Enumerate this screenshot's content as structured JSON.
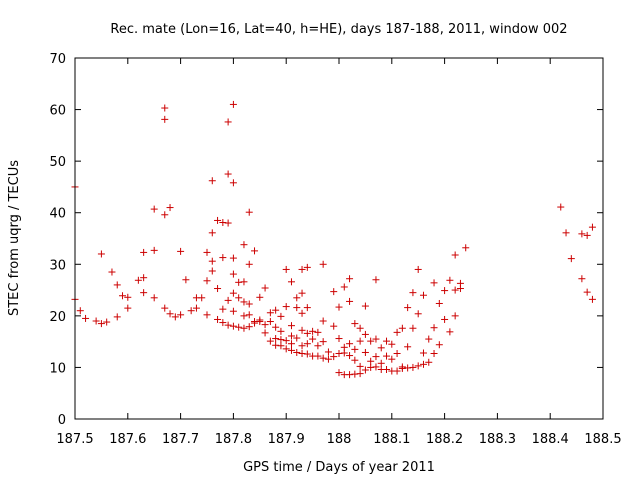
{
  "chart_data": {
    "type": "scatter",
    "title": "Rec. mate (Lon=16, Lat=40, h=HE), days 187-188, 2011, window 002",
    "xlabel": "GPS time / Days of year 2011",
    "ylabel": "STEC from uqrg / TECUs",
    "xlim": [
      187.5,
      188.5
    ],
    "ylim": [
      0,
      70
    ],
    "x_ticks": [
      187.5,
      187.6,
      187.7,
      187.8,
      187.9,
      188.0,
      188.1,
      188.2,
      188.3,
      188.4,
      188.5
    ],
    "x_tick_labels": [
      "187.5",
      "187.6",
      "187.7",
      "187.8",
      "187.9",
      "188",
      "188.1",
      "188.2",
      "188.3",
      "188.4",
      "188.5"
    ],
    "y_ticks": [
      0,
      10,
      20,
      30,
      40,
      50,
      60,
      70
    ],
    "y_tick_labels": [
      "0",
      "10",
      "20",
      "30",
      "40",
      "50",
      "60",
      "70"
    ],
    "grid": false,
    "marker": "+",
    "color": "#cc0000",
    "series": [
      {
        "name": "STEC",
        "points": [
          [
            187.5,
            45.0
          ],
          [
            187.5,
            23.2
          ],
          [
            187.51,
            21.0
          ],
          [
            187.52,
            19.5
          ],
          [
            187.54,
            19.0
          ],
          [
            187.55,
            32.0
          ],
          [
            187.55,
            18.5
          ],
          [
            187.56,
            18.8
          ],
          [
            187.57,
            28.5
          ],
          [
            187.58,
            26.0
          ],
          [
            187.58,
            19.8
          ],
          [
            187.59,
            23.9
          ],
          [
            187.6,
            23.6
          ],
          [
            187.6,
            21.5
          ],
          [
            187.62,
            26.9
          ],
          [
            187.63,
            27.4
          ],
          [
            187.63,
            24.5
          ],
          [
            187.63,
            32.3
          ],
          [
            187.65,
            32.7
          ],
          [
            187.65,
            40.7
          ],
          [
            187.65,
            23.5
          ],
          [
            187.67,
            39.6
          ],
          [
            187.67,
            60.3
          ],
          [
            187.67,
            58.1
          ],
          [
            187.67,
            21.5
          ],
          [
            187.68,
            41.0
          ],
          [
            187.68,
            20.4
          ],
          [
            187.69,
            19.8
          ],
          [
            187.7,
            32.5
          ],
          [
            187.7,
            20.2
          ],
          [
            187.71,
            27.0
          ],
          [
            187.72,
            21.0
          ],
          [
            187.73,
            23.5
          ],
          [
            187.73,
            21.5
          ],
          [
            187.74,
            23.5
          ],
          [
            187.75,
            20.2
          ],
          [
            187.75,
            26.8
          ],
          [
            187.75,
            32.3
          ],
          [
            187.76,
            28.7
          ],
          [
            187.76,
            30.6
          ],
          [
            187.76,
            36.1
          ],
          [
            187.76,
            46.2
          ],
          [
            187.77,
            38.5
          ],
          [
            187.77,
            19.3
          ],
          [
            187.77,
            25.3
          ],
          [
            187.78,
            38.1
          ],
          [
            187.78,
            31.3
          ],
          [
            187.78,
            21.3
          ],
          [
            187.78,
            18.7
          ],
          [
            187.79,
            57.6
          ],
          [
            187.79,
            47.5
          ],
          [
            187.79,
            38.0
          ],
          [
            187.79,
            23.0
          ],
          [
            187.79,
            18.2
          ],
          [
            187.8,
            61.0
          ],
          [
            187.8,
            45.8
          ],
          [
            187.8,
            31.2
          ],
          [
            187.8,
            28.1
          ],
          [
            187.8,
            24.4
          ],
          [
            187.8,
            18.0
          ],
          [
            187.8,
            20.9
          ],
          [
            187.81,
            26.5
          ],
          [
            187.81,
            17.8
          ],
          [
            187.81,
            23.5
          ],
          [
            187.82,
            33.8
          ],
          [
            187.82,
            26.6
          ],
          [
            187.82,
            22.7
          ],
          [
            187.82,
            20.0
          ],
          [
            187.82,
            17.6
          ],
          [
            187.83,
            40.1
          ],
          [
            187.83,
            30.0
          ],
          [
            187.83,
            22.3
          ],
          [
            187.83,
            20.2
          ],
          [
            187.83,
            17.9
          ],
          [
            187.84,
            18.6
          ],
          [
            187.84,
            18.9
          ],
          [
            187.84,
            32.6
          ],
          [
            187.85,
            23.6
          ],
          [
            187.85,
            19.2
          ],
          [
            187.85,
            18.9
          ],
          [
            187.86,
            25.4
          ],
          [
            187.86,
            18.3
          ],
          [
            187.86,
            16.7
          ],
          [
            187.87,
            20.6
          ],
          [
            187.87,
            18.9
          ],
          [
            187.87,
            15.1
          ],
          [
            187.88,
            21.1
          ],
          [
            187.88,
            17.8
          ],
          [
            187.88,
            15.6
          ],
          [
            187.88,
            14.3
          ],
          [
            187.89,
            19.9
          ],
          [
            187.89,
            17.0
          ],
          [
            187.89,
            15.4
          ],
          [
            187.89,
            14.2
          ],
          [
            187.9,
            29.0
          ],
          [
            187.9,
            21.8
          ],
          [
            187.9,
            15.2
          ],
          [
            187.9,
            13.6
          ],
          [
            187.91,
            26.6
          ],
          [
            187.91,
            18.1
          ],
          [
            187.91,
            16.1
          ],
          [
            187.91,
            14.6
          ],
          [
            187.91,
            13.3
          ],
          [
            187.92,
            23.5
          ],
          [
            187.92,
            21.6
          ],
          [
            187.92,
            15.7
          ],
          [
            187.92,
            12.9
          ],
          [
            187.93,
            29.0
          ],
          [
            187.93,
            24.4
          ],
          [
            187.93,
            20.5
          ],
          [
            187.93,
            17.2
          ],
          [
            187.93,
            14.2
          ],
          [
            187.93,
            12.7
          ],
          [
            187.94,
            29.4
          ],
          [
            187.94,
            21.6
          ],
          [
            187.94,
            16.6
          ],
          [
            187.94,
            14.6
          ],
          [
            187.94,
            12.6
          ],
          [
            187.95,
            17.0
          ],
          [
            187.95,
            15.5
          ],
          [
            187.95,
            12.2
          ],
          [
            187.96,
            16.8
          ],
          [
            187.96,
            14.2
          ],
          [
            187.96,
            12.2
          ],
          [
            187.97,
            30.0
          ],
          [
            187.97,
            19.0
          ],
          [
            187.97,
            15.0
          ],
          [
            187.97,
            11.8
          ],
          [
            187.98,
            11.6
          ],
          [
            187.98,
            13.0
          ],
          [
            187.99,
            24.7
          ],
          [
            187.99,
            18.0
          ],
          [
            187.99,
            12.1
          ],
          [
            188.0,
            21.7
          ],
          [
            188.0,
            15.6
          ],
          [
            188.0,
            12.7
          ],
          [
            188.0,
            9.0
          ],
          [
            188.01,
            25.6
          ],
          [
            188.01,
            13.9
          ],
          [
            188.01,
            12.8
          ],
          [
            188.01,
            8.6
          ],
          [
            188.02,
            27.2
          ],
          [
            188.02,
            22.8
          ],
          [
            188.02,
            14.6
          ],
          [
            188.02,
            12.3
          ],
          [
            188.02,
            8.6
          ],
          [
            188.03,
            18.5
          ],
          [
            188.03,
            13.5
          ],
          [
            188.03,
            11.4
          ],
          [
            188.03,
            8.7
          ],
          [
            188.04,
            17.6
          ],
          [
            188.04,
            15.1
          ],
          [
            188.04,
            10.2
          ],
          [
            188.04,
            8.8
          ],
          [
            188.05,
            21.9
          ],
          [
            188.05,
            16.4
          ],
          [
            188.05,
            12.9
          ],
          [
            188.05,
            9.5
          ],
          [
            188.06,
            15.1
          ],
          [
            188.06,
            11.2
          ],
          [
            188.06,
            10.0
          ],
          [
            188.07,
            27.0
          ],
          [
            188.07,
            15.5
          ],
          [
            188.07,
            12.1
          ],
          [
            188.07,
            10.1
          ],
          [
            188.08,
            13.8
          ],
          [
            188.08,
            10.8
          ],
          [
            188.08,
            9.6
          ],
          [
            188.09,
            15.1
          ],
          [
            188.09,
            12.2
          ],
          [
            188.09,
            9.6
          ],
          [
            188.1,
            14.5
          ],
          [
            188.1,
            11.6
          ],
          [
            188.1,
            9.3
          ],
          [
            188.11,
            16.8
          ],
          [
            188.11,
            12.7
          ],
          [
            188.11,
            9.3
          ],
          [
            188.12,
            17.6
          ],
          [
            188.12,
            10.1
          ],
          [
            188.12,
            9.8
          ],
          [
            188.13,
            21.6
          ],
          [
            188.13,
            14.0
          ],
          [
            188.13,
            9.9
          ],
          [
            188.14,
            24.5
          ],
          [
            188.14,
            17.6
          ],
          [
            188.14,
            10.0
          ],
          [
            188.15,
            20.4
          ],
          [
            188.15,
            10.3
          ],
          [
            188.15,
            29.0
          ],
          [
            188.16,
            24.0
          ],
          [
            188.16,
            12.8
          ],
          [
            188.16,
            10.6
          ],
          [
            188.17,
            15.5
          ],
          [
            188.17,
            11.0
          ],
          [
            188.18,
            26.4
          ],
          [
            188.18,
            17.7
          ],
          [
            188.18,
            12.7
          ],
          [
            188.19,
            22.4
          ],
          [
            188.19,
            14.4
          ],
          [
            188.2,
            24.9
          ],
          [
            188.2,
            19.3
          ],
          [
            188.21,
            26.9
          ],
          [
            188.21,
            16.9
          ],
          [
            188.22,
            25.0
          ],
          [
            188.22,
            20.0
          ],
          [
            188.22,
            31.8
          ],
          [
            188.23,
            26.3
          ],
          [
            188.23,
            25.3
          ],
          [
            188.24,
            33.2
          ],
          [
            188.42,
            41.1
          ],
          [
            188.43,
            36.1
          ],
          [
            188.44,
            31.1
          ],
          [
            188.46,
            27.2
          ],
          [
            188.46,
            35.9
          ],
          [
            188.47,
            24.6
          ],
          [
            188.47,
            35.6
          ],
          [
            188.48,
            23.2
          ],
          [
            188.48,
            37.2
          ]
        ]
      }
    ]
  }
}
